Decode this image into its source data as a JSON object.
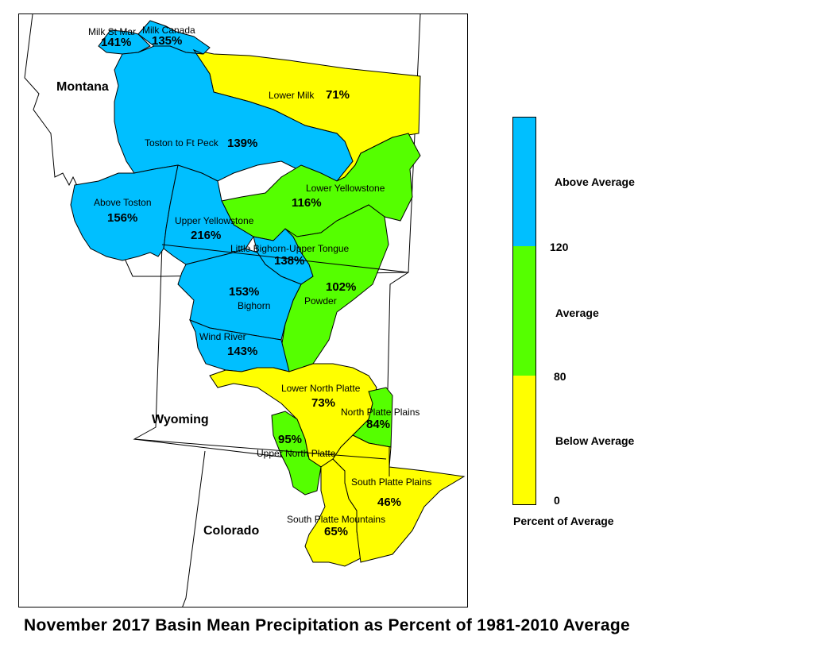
{
  "title": "November 2017 Basin Mean Precipitation as Percent of 1981-2010 Average",
  "colors": {
    "above": "#00BFFF",
    "average": "#55FF00",
    "below": "#FFFF00",
    "outline": "#000000"
  },
  "states": [
    "Montana",
    "Wyoming",
    "Colorado"
  ],
  "basins": [
    {
      "name": "Milk St Mar",
      "pct": "141%",
      "category": "above"
    },
    {
      "name": "Milk Canada",
      "pct": "135%",
      "category": "above"
    },
    {
      "name": "Lower Milk",
      "pct": "71%",
      "category": "below"
    },
    {
      "name": "Toston to Ft Peck",
      "pct": "139%",
      "category": "above"
    },
    {
      "name": "Above Toston",
      "pct": "156%",
      "category": "above"
    },
    {
      "name": "Lower Yellowstone",
      "pct": "116%",
      "category": "average"
    },
    {
      "name": "Upper Yellowstone",
      "pct": "216%",
      "category": "above"
    },
    {
      "name": "Little Bighorn-Upper Tongue",
      "pct": "138%",
      "category": "above"
    },
    {
      "name": "Powder",
      "pct": "102%",
      "category": "average"
    },
    {
      "name": "Bighorn",
      "pct": "153%",
      "category": "above"
    },
    {
      "name": "Wind River",
      "pct": "143%",
      "category": "above"
    },
    {
      "name": "Lower North Platte",
      "pct": "73%",
      "category": "below"
    },
    {
      "name": "North Platte Plains",
      "pct": "84%",
      "category": "average"
    },
    {
      "name": "Upper North Platte",
      "pct": "95%",
      "category": "average"
    },
    {
      "name": "South Platte Plains",
      "pct": "46%",
      "category": "below"
    },
    {
      "name": "South Platte Mountains",
      "pct": "65%",
      "category": "below"
    }
  ],
  "legend": {
    "title": "Percent of Average",
    "classes": [
      {
        "label": "Above Average",
        "category": "above"
      },
      {
        "label": "Average",
        "category": "average"
      },
      {
        "label": "Below Average",
        "category": "below"
      }
    ],
    "breaks": [
      "120",
      "80",
      "0"
    ]
  }
}
